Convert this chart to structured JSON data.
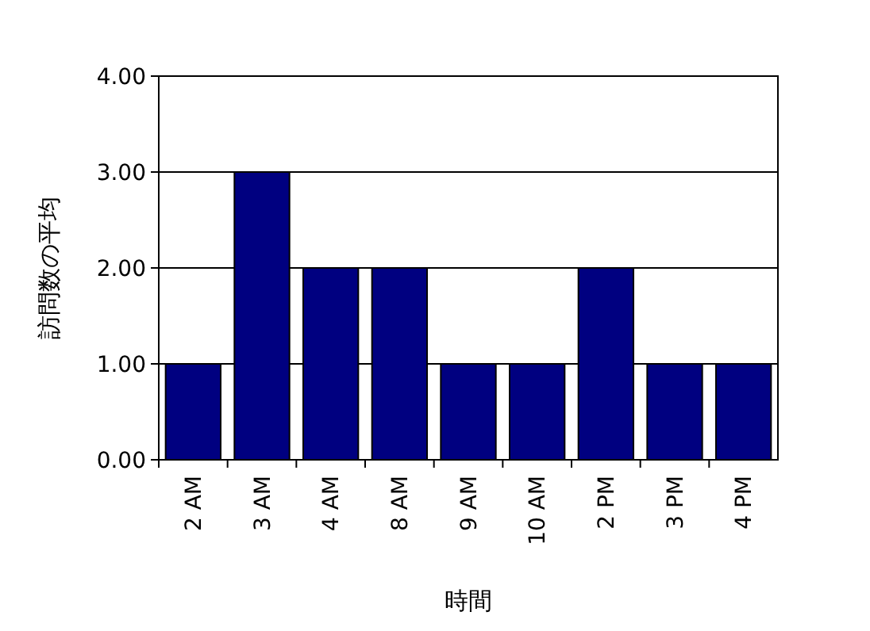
{
  "chart_data": {
    "type": "bar",
    "xlabel": "時間",
    "ylabel": "訪問数の平均",
    "categories": [
      "2 AM",
      "3 AM",
      "4 AM",
      "8 AM",
      "9 AM",
      "10 AM",
      "2 PM",
      "3 PM",
      "4 PM"
    ],
    "values": [
      1,
      3,
      2,
      2,
      1,
      1,
      2,
      1,
      1
    ],
    "color": "#000080",
    "ylim": [
      0,
      4
    ],
    "yticks": [
      {
        "value": 0,
        "label": "0.00"
      },
      {
        "value": 1,
        "label": "1.00"
      },
      {
        "value": 2,
        "label": "2.00"
      },
      {
        "value": 3,
        "label": "3.00"
      },
      {
        "value": 4,
        "label": "4.00"
      }
    ],
    "grid": "y"
  }
}
